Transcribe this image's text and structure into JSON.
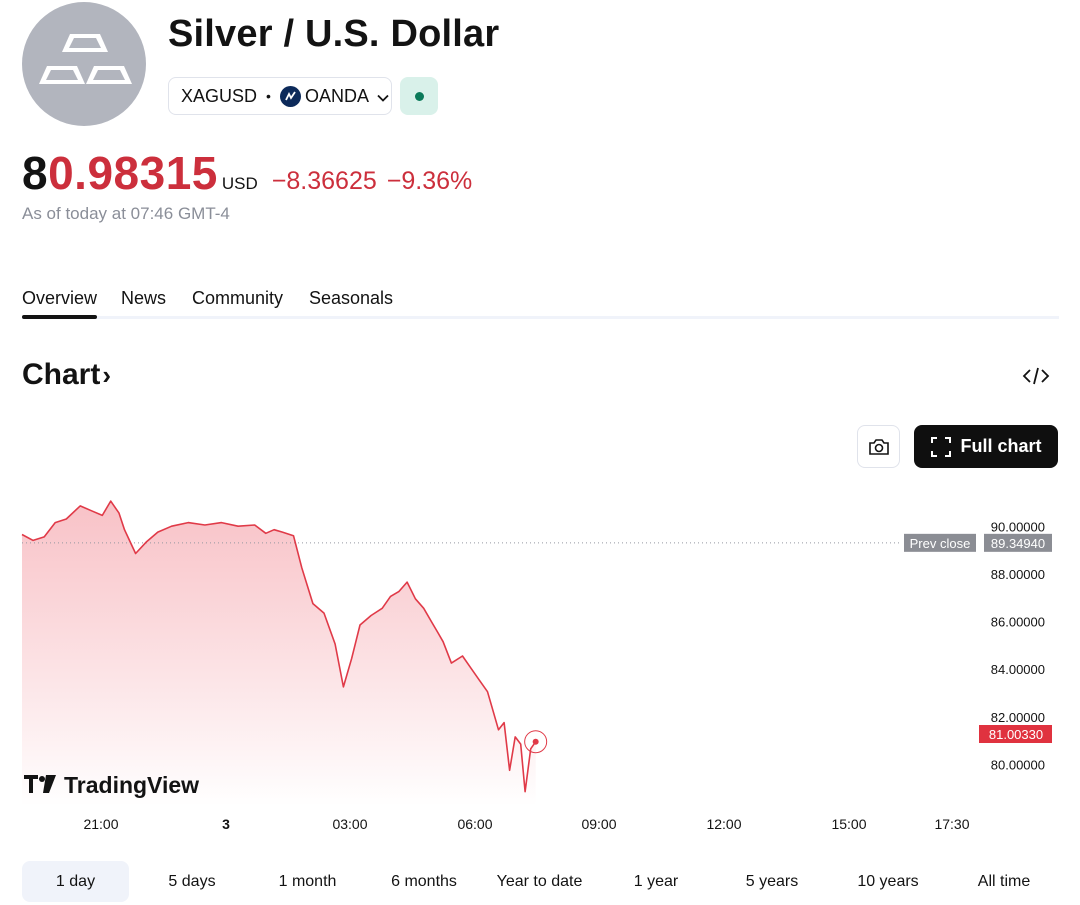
{
  "header": {
    "title": "Silver / U.S. Dollar",
    "symbol": "XAGUSD",
    "separator": "•",
    "exchange": "OANDA",
    "logo_icon": "silver-bars-icon",
    "market_status_color": "#0b7a5a"
  },
  "quote": {
    "price_lead": "8",
    "price_rest": "0.98315",
    "currency": "USD",
    "change": "−8.36625",
    "change_pct": "−9.36%",
    "as_of": "As of today at 07:46 GMT-4",
    "down_color": "#cc2f3c"
  },
  "tabs": [
    {
      "label": "Overview",
      "active": true
    },
    {
      "label": "News",
      "active": false
    },
    {
      "label": "Community",
      "active": false
    },
    {
      "label": "Seasonals",
      "active": false
    }
  ],
  "chart_section": {
    "heading": "Chart",
    "heading_suffix": "›",
    "embed_icon": "code-embed-icon",
    "screenshot_icon": "camera-icon",
    "full_chart_label": "Full chart",
    "full_chart_icon": "expand-icon",
    "watermark": "TradingView"
  },
  "chart_data": {
    "type": "area",
    "x_tick_labels": [
      "21:00",
      "3",
      "03:00",
      "06:00",
      "09:00",
      "12:00",
      "15:00",
      "17:30"
    ],
    "y_tick_labels": [
      "90.00000",
      "88.00000",
      "86.00000",
      "84.00000",
      "82.00000",
      "80.00000"
    ],
    "y_ticks": [
      90,
      88,
      86,
      84,
      82,
      80
    ],
    "ylim": [
      78.3,
      91.4
    ],
    "prev_close_label": "Prev close",
    "prev_close_value": "89.34940",
    "prev_close": 89.3494,
    "last_value_label": "81.00330",
    "last_value": 81.0033,
    "line_color": "#e03a48",
    "time_hours": [
      18.5,
      26.5
    ],
    "series": [
      {
        "t": 18.5,
        "v": 89.7
      },
      {
        "t": 18.7,
        "v": 89.45
      },
      {
        "t": 18.9,
        "v": 89.6
      },
      {
        "t": 19.1,
        "v": 90.2
      },
      {
        "t": 19.3,
        "v": 90.35
      },
      {
        "t": 19.55,
        "v": 90.9
      },
      {
        "t": 19.75,
        "v": 90.7
      },
      {
        "t": 19.95,
        "v": 90.5
      },
      {
        "t": 20.1,
        "v": 91.1
      },
      {
        "t": 20.25,
        "v": 90.6
      },
      {
        "t": 20.35,
        "v": 89.9
      },
      {
        "t": 20.55,
        "v": 88.9
      },
      {
        "t": 20.75,
        "v": 89.4
      },
      {
        "t": 20.95,
        "v": 89.8
      },
      {
        "t": 21.2,
        "v": 90.05
      },
      {
        "t": 21.5,
        "v": 90.2
      },
      {
        "t": 21.8,
        "v": 90.1
      },
      {
        "t": 22.1,
        "v": 90.2
      },
      {
        "t": 22.4,
        "v": 90.05
      },
      {
        "t": 22.7,
        "v": 90.1
      },
      {
        "t": 22.9,
        "v": 89.75
      },
      {
        "t": 23.05,
        "v": 89.9
      },
      {
        "t": 23.2,
        "v": 89.8
      },
      {
        "t": 23.4,
        "v": 89.65
      },
      {
        "t": 23.55,
        "v": 88.3
      },
      {
        "t": 23.75,
        "v": 86.8
      },
      {
        "t": 23.95,
        "v": 86.4
      },
      {
        "t": 24.15,
        "v": 85.1
      },
      {
        "t": 24.3,
        "v": 83.3
      },
      {
        "t": 24.45,
        "v": 84.5
      },
      {
        "t": 24.6,
        "v": 85.9
      },
      {
        "t": 24.8,
        "v": 86.3
      },
      {
        "t": 25.0,
        "v": 86.6
      },
      {
        "t": 25.15,
        "v": 87.1
      },
      {
        "t": 25.3,
        "v": 87.3
      },
      {
        "t": 25.45,
        "v": 87.7
      },
      {
        "t": 25.6,
        "v": 87.0
      },
      {
        "t": 25.75,
        "v": 86.6
      },
      {
        "t": 25.9,
        "v": 86.0
      },
      {
        "t": 26.0,
        "v": 85.6
      },
      {
        "t": 26.1,
        "v": 85.2
      },
      {
        "t": 26.25,
        "v": 84.3
      },
      {
        "t": 26.45,
        "v": 84.6
      },
      {
        "t": 26.6,
        "v": 84.1
      },
      {
        "t": 26.75,
        "v": 83.6
      },
      {
        "t": 26.9,
        "v": 83.1
      },
      {
        "t": 27.0,
        "v": 82.3
      },
      {
        "t": 27.1,
        "v": 81.5
      },
      {
        "t": 27.2,
        "v": 81.8
      },
      {
        "t": 27.3,
        "v": 79.8
      },
      {
        "t": 27.4,
        "v": 81.2
      },
      {
        "t": 27.5,
        "v": 80.9
      },
      {
        "t": 27.58,
        "v": 78.9
      },
      {
        "t": 27.68,
        "v": 80.7
      },
      {
        "t": 27.77,
        "v": 81.0
      }
    ]
  },
  "ranges": [
    {
      "label": "1 day",
      "active": true
    },
    {
      "label": "5 days",
      "active": false
    },
    {
      "label": "1 month",
      "active": false
    },
    {
      "label": "6 months",
      "active": false
    },
    {
      "label": "Year to date",
      "active": false
    },
    {
      "label": "1 year",
      "active": false
    },
    {
      "label": "5 years",
      "active": false
    },
    {
      "label": "10 years",
      "active": false
    },
    {
      "label": "All time",
      "active": false
    }
  ]
}
